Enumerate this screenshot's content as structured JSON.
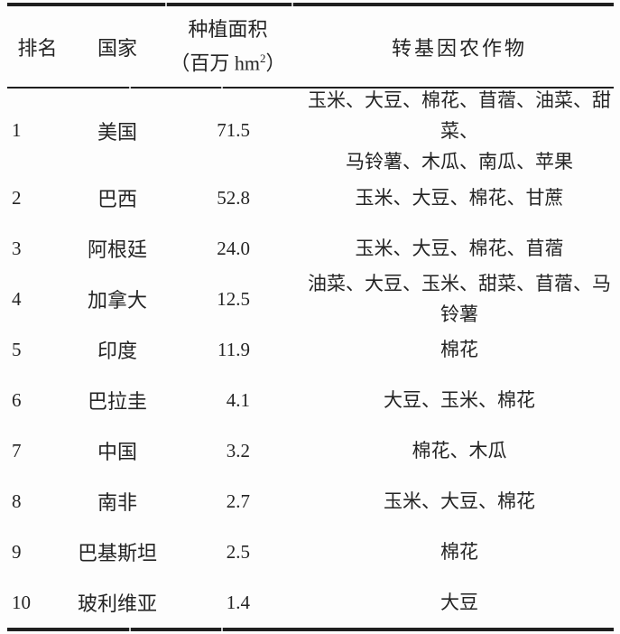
{
  "colors": {
    "ink": "#242424",
    "rule": "#1f1f1f",
    "background": "#fdfdfd"
  },
  "table": {
    "header": {
      "rank": "排名",
      "country": "国家",
      "area_line1": "种植面积",
      "area_unit_prefix": "（百万 hm",
      "area_unit_sup": "2",
      "area_unit_suffix": "）",
      "crops": "转基因农作物"
    },
    "rows": [
      {
        "rank": "1",
        "country": "美国",
        "area": "71.5",
        "crops_lines": [
          "玉米、大豆、棉花、苜蓿、油菜、甜菜、",
          "马铃薯、木瓜、南瓜、苹果"
        ]
      },
      {
        "rank": "2",
        "country": "巴西",
        "area": "52.8",
        "crops_lines": [
          "玉米、大豆、棉花、甘蔗"
        ]
      },
      {
        "rank": "3",
        "country": "阿根廷",
        "area": "24.0",
        "crops_lines": [
          "玉米、大豆、棉花、苜蓿"
        ]
      },
      {
        "rank": "4",
        "country": "加拿大",
        "area": "12.5",
        "crops_lines": [
          "油菜、大豆、玉米、甜菜、苜蓿、马铃薯"
        ]
      },
      {
        "rank": "5",
        "country": "印度",
        "area": "11.9",
        "crops_lines": [
          "棉花"
        ]
      },
      {
        "rank": "6",
        "country": "巴拉圭",
        "area": "4.1",
        "crops_lines": [
          "大豆、玉米、棉花"
        ]
      },
      {
        "rank": "7",
        "country": "中国",
        "area": "3.2",
        "crops_lines": [
          "棉花、木瓜"
        ]
      },
      {
        "rank": "8",
        "country": "南非",
        "area": "2.7",
        "crops_lines": [
          "玉米、大豆、棉花"
        ]
      },
      {
        "rank": "9",
        "country": "巴基斯坦",
        "area": "2.5",
        "crops_lines": [
          "棉花"
        ]
      },
      {
        "rank": "10",
        "country": "玻利维亚",
        "area": "1.4",
        "crops_lines": [
          "大豆"
        ]
      }
    ]
  }
}
